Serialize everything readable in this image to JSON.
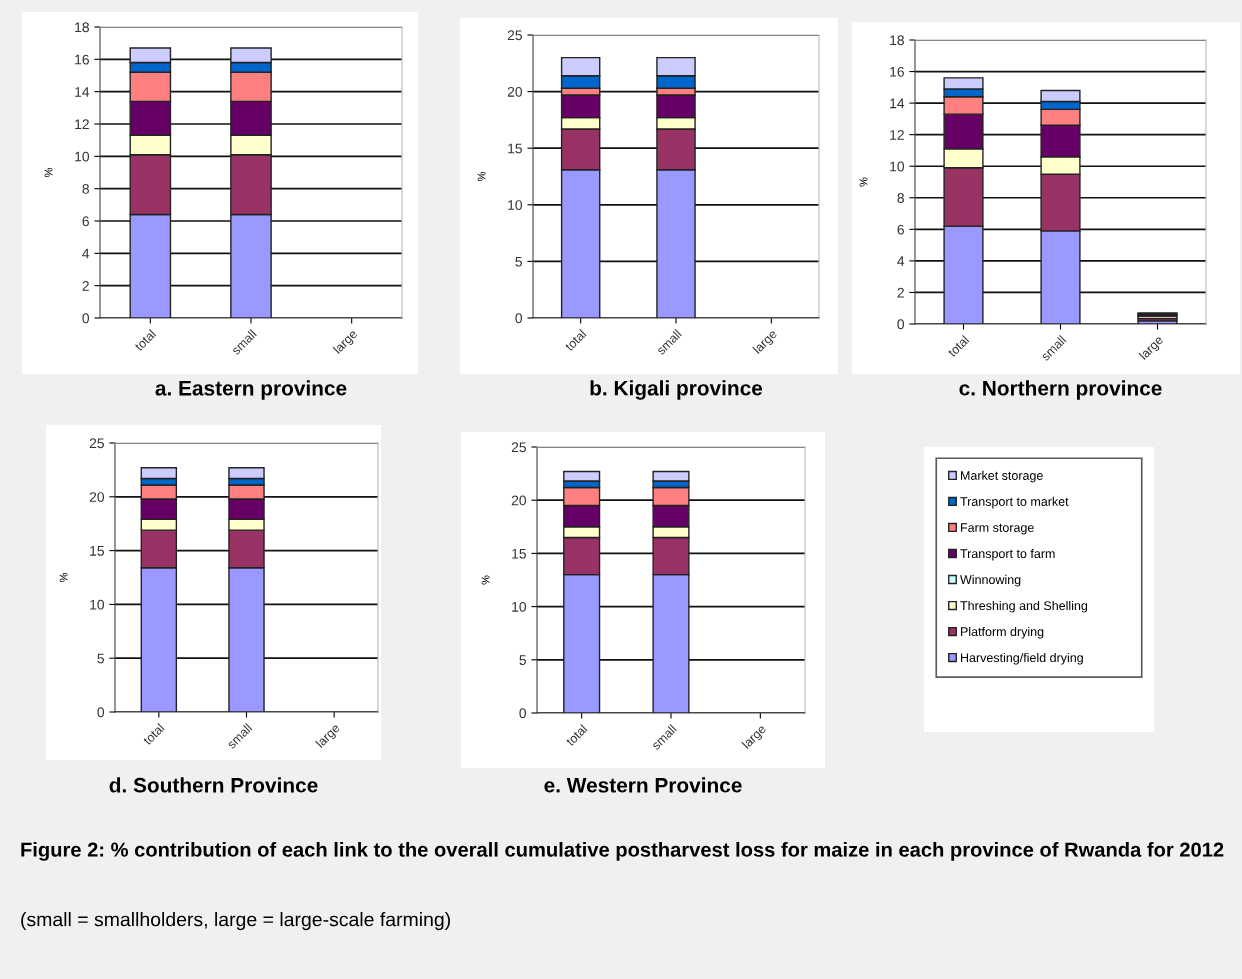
{
  "chart_data": [
    {
      "type": "bar",
      "stacked": true,
      "title": "a. Eastern province",
      "ylabel": "%",
      "categories": [
        "total",
        "small",
        "large"
      ],
      "ylim": [
        0,
        18
      ],
      "yticks": [
        0,
        2,
        4,
        6,
        8,
        10,
        12,
        14,
        16,
        18
      ],
      "grid": "y",
      "series": [
        {
          "color": "#9999ff",
          "values": [
            6.4,
            6.4,
            null
          ]
        },
        {
          "color": "#993366",
          "values": [
            3.7,
            3.7,
            null
          ]
        },
        {
          "color": "#ffffcc",
          "values": [
            1.2,
            1.2,
            null
          ]
        },
        {
          "color": "#ccffff",
          "values": [
            null,
            null,
            null
          ]
        },
        {
          "color": "#660066",
          "values": [
            2.1,
            2.1,
            null
          ]
        },
        {
          "color": "#ff8080",
          "values": [
            1.8,
            1.8,
            null
          ]
        },
        {
          "color": "#0066cc",
          "values": [
            0.6,
            0.6,
            null
          ]
        },
        {
          "color": "#ccccff",
          "values": [
            0.9,
            0.9,
            null
          ]
        }
      ]
    },
    {
      "type": "bar",
      "stacked": true,
      "title": "b. Kigali province",
      "ylabel": "%",
      "categories": [
        "total",
        "small",
        "large"
      ],
      "ylim": [
        0,
        25
      ],
      "yticks": [
        0,
        5,
        10,
        15,
        20,
        25
      ],
      "grid": "y",
      "series": [
        {
          "color": "#9999ff",
          "values": [
            13.1,
            13.1,
            null
          ]
        },
        {
          "color": "#993366",
          "values": [
            3.6,
            3.6,
            null
          ]
        },
        {
          "color": "#ffffcc",
          "values": [
            1.0,
            1.0,
            null
          ]
        },
        {
          "color": "#ccffff",
          "values": [
            null,
            null,
            null
          ]
        },
        {
          "color": "#660066",
          "values": [
            2.0,
            2.0,
            null
          ]
        },
        {
          "color": "#ff8080",
          "values": [
            0.6,
            0.6,
            null
          ]
        },
        {
          "color": "#0066cc",
          "values": [
            1.1,
            1.1,
            null
          ]
        },
        {
          "color": "#ccccff",
          "values": [
            1.6,
            1.6,
            null
          ]
        }
      ]
    },
    {
      "type": "bar",
      "stacked": true,
      "title": "c. Northern province",
      "ylabel": "%",
      "categories": [
        "total",
        "small",
        "large"
      ],
      "ylim": [
        0,
        18
      ],
      "yticks": [
        0,
        2,
        4,
        6,
        8,
        10,
        12,
        14,
        16,
        18
      ],
      "grid": "y",
      "series": [
        {
          "color": "#9999ff",
          "values": [
            6.2,
            5.9,
            0.2
          ]
        },
        {
          "color": "#993366",
          "values": [
            3.7,
            3.6,
            0.15
          ]
        },
        {
          "color": "#ffffcc",
          "values": [
            1.2,
            1.1,
            0.15
          ]
        },
        {
          "color": "#ccffff",
          "values": [
            null,
            null,
            null
          ]
        },
        {
          "color": "#660066",
          "values": [
            2.2,
            2.0,
            0.1
          ]
        },
        {
          "color": "#ff8080",
          "values": [
            1.1,
            1.0,
            null
          ]
        },
        {
          "color": "#0066cc",
          "values": [
            0.5,
            0.5,
            0.05
          ]
        },
        {
          "color": "#ccccff",
          "values": [
            0.7,
            0.7,
            0.05
          ]
        }
      ]
    },
    {
      "type": "bar",
      "stacked": true,
      "title": "d. Southern Province",
      "ylabel": "%",
      "categories": [
        "total",
        "small",
        "large"
      ],
      "ylim": [
        0,
        25
      ],
      "yticks": [
        0,
        5,
        10,
        15,
        20,
        25
      ],
      "grid": "y",
      "series": [
        {
          "color": "#9999ff",
          "values": [
            13.4,
            13.4,
            null
          ]
        },
        {
          "color": "#993366",
          "values": [
            3.5,
            3.5,
            null
          ]
        },
        {
          "color": "#ffffcc",
          "values": [
            1.0,
            1.0,
            null
          ]
        },
        {
          "color": "#ccffff",
          "values": [
            null,
            null,
            null
          ]
        },
        {
          "color": "#660066",
          "values": [
            1.9,
            1.9,
            null
          ]
        },
        {
          "color": "#ff8080",
          "values": [
            1.3,
            1.3,
            null
          ]
        },
        {
          "color": "#0066cc",
          "values": [
            0.6,
            0.6,
            null
          ]
        },
        {
          "color": "#ccccff",
          "values": [
            1.0,
            1.0,
            null
          ]
        }
      ]
    },
    {
      "type": "bar",
      "stacked": true,
      "title": "e. Western Province",
      "ylabel": "%",
      "categories": [
        "total",
        "small",
        "large"
      ],
      "ylim": [
        0,
        25
      ],
      "yticks": [
        0,
        5,
        10,
        15,
        20,
        25
      ],
      "grid": "y",
      "legend": "right",
      "annotations": [
        "Figure 2: % contribution of each link to the overall cumulative postharvest loss for maize in each province of Rwanda for 2012",
        "(small = smallholders, large = large-scale farming)"
      ],
      "series": [
        {
          "name": "Harvesting/field drying",
          "color": "#9999ff",
          "values": [
            13.0,
            13.0,
            null
          ]
        },
        {
          "name": "Platform drying",
          "color": "#993366",
          "values": [
            3.5,
            3.5,
            null
          ]
        },
        {
          "name": "Threshing and Shelling",
          "color": "#ffffcc",
          "values": [
            1.0,
            1.0,
            null
          ]
        },
        {
          "name": "Winnowing",
          "color": "#ccffff",
          "values": [
            null,
            null,
            null
          ]
        },
        {
          "name": "Transport to farm",
          "color": "#660066",
          "values": [
            2.0,
            2.0,
            null
          ]
        },
        {
          "name": "Farm storage",
          "color": "#ff8080",
          "values": [
            1.7,
            1.7,
            null
          ]
        },
        {
          "name": "Transport to market",
          "color": "#0066cc",
          "values": [
            0.6,
            0.6,
            null
          ]
        },
        {
          "name": "Market storage",
          "color": "#ccccff",
          "values": [
            0.9,
            0.9,
            null
          ]
        }
      ]
    }
  ]
}
